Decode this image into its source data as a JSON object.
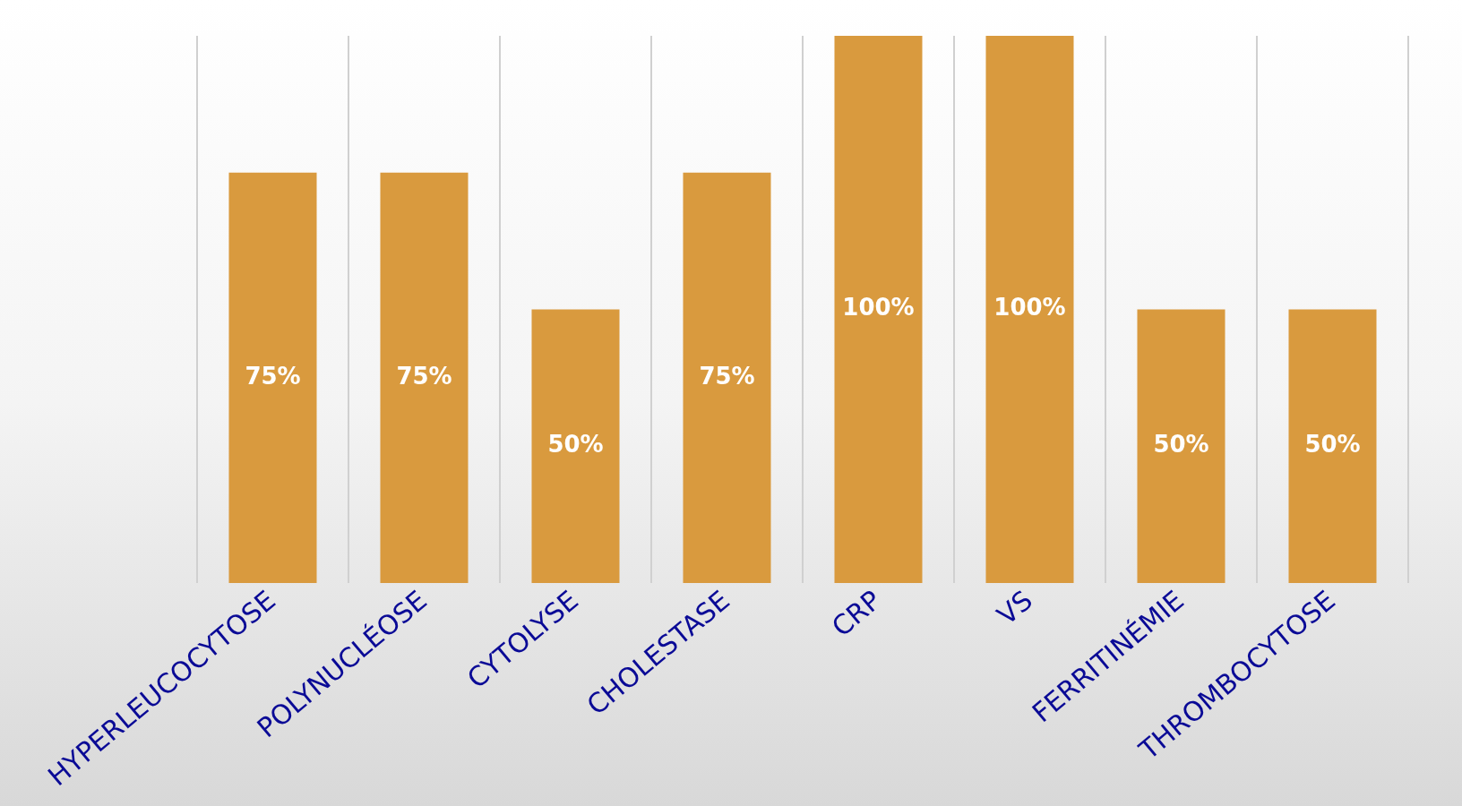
{
  "chart_data": {
    "type": "bar",
    "categories": [
      "HYPERLEUCOCYTOSE",
      "POLYNUCLÉOSE",
      "CYTOLYSE",
      "CHOLESTASE",
      "CRP",
      "VS",
      "FERRITINÉMIE",
      "THROMBOCYTOSE"
    ],
    "values": [
      75,
      75,
      50,
      75,
      100,
      100,
      50,
      50
    ],
    "value_labels": [
      "75%",
      "75%",
      "50%",
      "75%",
      "100%",
      "100%",
      "50%",
      "50%"
    ],
    "color": "#d99a3e",
    "grid": "x"
  }
}
